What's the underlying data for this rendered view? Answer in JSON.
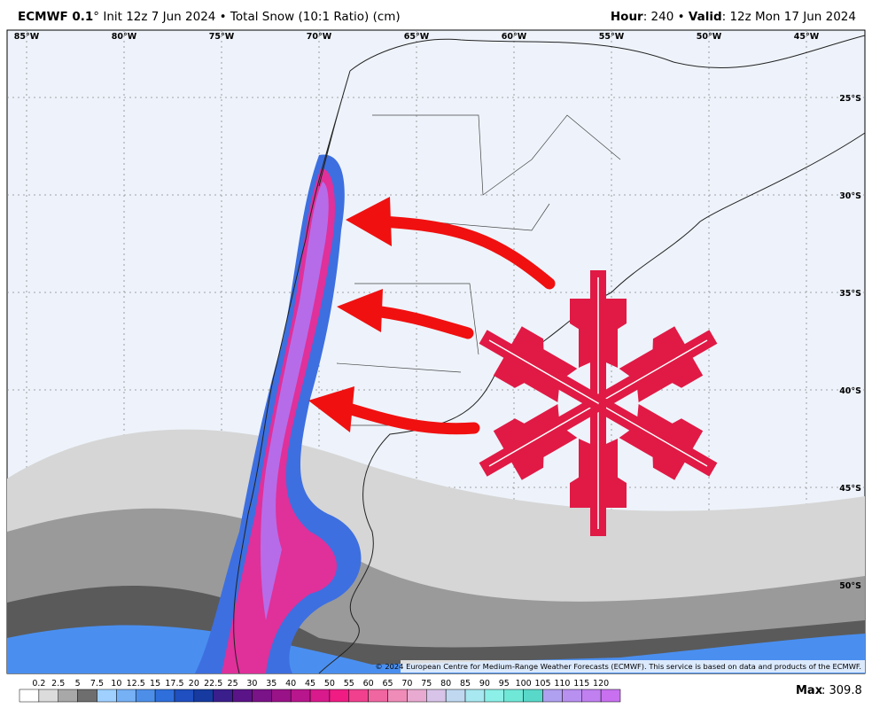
{
  "header": {
    "model": "ECMWF 0.1",
    "left_rest": "° Init 12z 7 Jun 2024 • Total Snow (10:1 Ratio) (cm)",
    "hour_label": "Hour",
    "hour_rest": ": 240 • ",
    "valid_label": "Valid",
    "valid_rest": ": 12z Mon 17 Jun 2024"
  },
  "longitudes": [
    "85°W",
    "80°W",
    "75°W",
    "70°W",
    "65°W",
    "60°W",
    "55°W",
    "50°W",
    "45°W"
  ],
  "latitudes": [
    "25°S",
    "30°S",
    "35°S",
    "40°S",
    "45°S",
    "50°S"
  ],
  "copyright": "© 2024 European Centre for Medium-Range Weather Forecasts (ECMWF). This service is based on data and products of the ECMWF.",
  "colorbar": {
    "labels": [
      "0.2",
      "2.5",
      "5",
      "7.5",
      "10",
      "12.5",
      "15",
      "17.5",
      "20",
      "22.5",
      "25",
      "30",
      "35",
      "40",
      "45",
      "50",
      "55",
      "60",
      "65",
      "70",
      "75",
      "80",
      "85",
      "90",
      "95",
      "100",
      "105",
      "110",
      "115",
      "120"
    ]
  },
  "max": {
    "label": "Max",
    "rest": ": 309.8"
  }
}
